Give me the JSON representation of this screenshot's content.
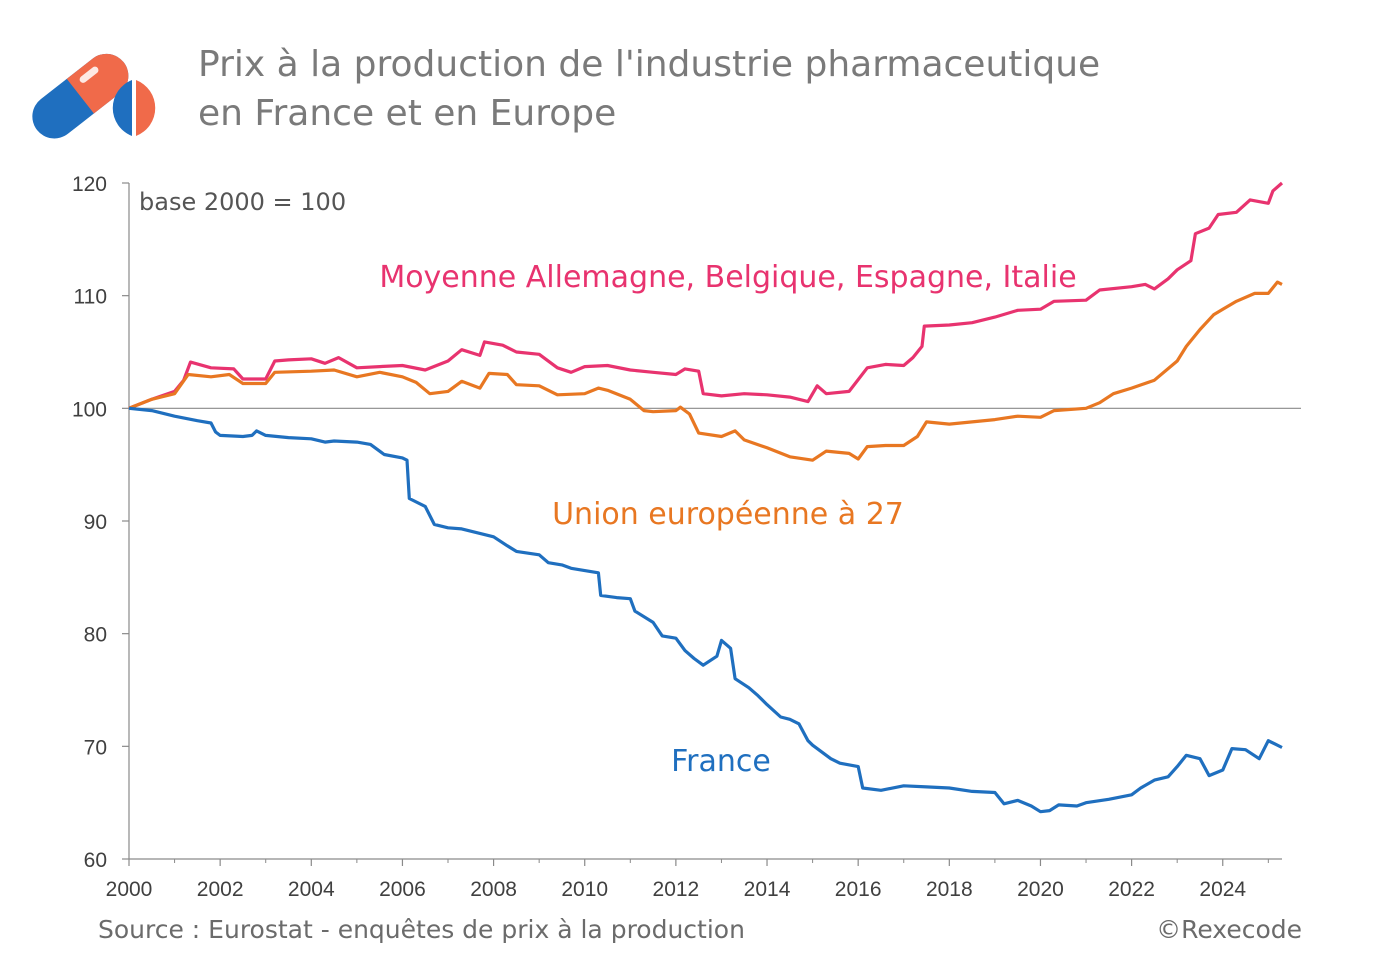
{
  "header": {
    "title_line1": "Prix à la production de l'industrie pharmaceutique",
    "title_line2": "en France et en Europe",
    "logo_icon": "pill-capsule-icon"
  },
  "footer": {
    "source": "Source : Eurostat - enquêtes de prix à la production",
    "copyright": "©Rexecode"
  },
  "chart_data": {
    "type": "line",
    "note": "base 2000 = 100",
    "xlim": [
      2000,
      2025.3
    ],
    "ylim": [
      60,
      120
    ],
    "xticks": [
      2000,
      2002,
      2004,
      2006,
      2008,
      2010,
      2012,
      2014,
      2016,
      2018,
      2020,
      2022,
      2024
    ],
    "yticks": [
      60,
      70,
      80,
      90,
      100,
      110,
      120
    ],
    "reference_line": 100,
    "grid": false,
    "series": [
      {
        "name": "Moyenne Allemagne, Belgique, Espagne, Italie",
        "color": "#e8336f",
        "points": [
          [
            2000,
            100
          ],
          [
            2000.5,
            100.8
          ],
          [
            2001,
            101.5
          ],
          [
            2001.2,
            102.5
          ],
          [
            2001.35,
            104.1
          ],
          [
            2001.8,
            103.6
          ],
          [
            2002.3,
            103.5
          ],
          [
            2002.5,
            102.6
          ],
          [
            2003,
            102.6
          ],
          [
            2003.2,
            104.2
          ],
          [
            2003.5,
            104.3
          ],
          [
            2004,
            104.4
          ],
          [
            2004.3,
            104.0
          ],
          [
            2004.6,
            104.5
          ],
          [
            2005,
            103.6
          ],
          [
            2005.5,
            103.7
          ],
          [
            2006,
            103.8
          ],
          [
            2006.5,
            103.4
          ],
          [
            2007,
            104.2
          ],
          [
            2007.3,
            105.2
          ],
          [
            2007.7,
            104.7
          ],
          [
            2007.8,
            105.9
          ],
          [
            2008.2,
            105.6
          ],
          [
            2008.5,
            105.0
          ],
          [
            2009,
            104.8
          ],
          [
            2009.4,
            103.6
          ],
          [
            2009.7,
            103.2
          ],
          [
            2010,
            103.7
          ],
          [
            2010.5,
            103.8
          ],
          [
            2011,
            103.4
          ],
          [
            2011.5,
            103.2
          ],
          [
            2012,
            103.0
          ],
          [
            2012.2,
            103.5
          ],
          [
            2012.5,
            103.3
          ],
          [
            2012.6,
            101.3
          ],
          [
            2013,
            101.1
          ],
          [
            2013.5,
            101.3
          ],
          [
            2014,
            101.2
          ],
          [
            2014.5,
            101.0
          ],
          [
            2014.9,
            100.6
          ],
          [
            2015.1,
            102.0
          ],
          [
            2015.3,
            101.3
          ],
          [
            2015.8,
            101.5
          ],
          [
            2016.2,
            103.6
          ],
          [
            2016.6,
            103.9
          ],
          [
            2017,
            103.8
          ],
          [
            2017.2,
            104.5
          ],
          [
            2017.4,
            105.5
          ],
          [
            2017.45,
            107.3
          ],
          [
            2018,
            107.4
          ],
          [
            2018.5,
            107.6
          ],
          [
            2019,
            108.1
          ],
          [
            2019.5,
            108.7
          ],
          [
            2020,
            108.8
          ],
          [
            2020.3,
            109.5
          ],
          [
            2021,
            109.6
          ],
          [
            2021.3,
            110.5
          ],
          [
            2022,
            110.8
          ],
          [
            2022.3,
            111.0
          ],
          [
            2022.5,
            110.6
          ],
          [
            2022.8,
            111.5
          ],
          [
            2023,
            112.3
          ],
          [
            2023.3,
            113.1
          ],
          [
            2023.4,
            115.5
          ],
          [
            2023.7,
            116.0
          ],
          [
            2023.9,
            117.2
          ],
          [
            2024.3,
            117.4
          ],
          [
            2024.6,
            118.5
          ],
          [
            2025,
            118.2
          ],
          [
            2025.1,
            119.3
          ],
          [
            2025.3,
            120.0
          ]
        ]
      },
      {
        "name": "Union européenne à 27",
        "color": "#e87722",
        "points": [
          [
            2000,
            100
          ],
          [
            2000.5,
            100.8
          ],
          [
            2001,
            101.3
          ],
          [
            2001.3,
            103.0
          ],
          [
            2001.8,
            102.8
          ],
          [
            2002.2,
            103.0
          ],
          [
            2002.5,
            102.2
          ],
          [
            2003,
            102.2
          ],
          [
            2003.2,
            103.2
          ],
          [
            2004,
            103.3
          ],
          [
            2004.5,
            103.4
          ],
          [
            2005,
            102.8
          ],
          [
            2005.5,
            103.2
          ],
          [
            2006,
            102.8
          ],
          [
            2006.3,
            102.3
          ],
          [
            2006.6,
            101.3
          ],
          [
            2007,
            101.5
          ],
          [
            2007.3,
            102.4
          ],
          [
            2007.7,
            101.8
          ],
          [
            2007.9,
            103.1
          ],
          [
            2008.3,
            103.0
          ],
          [
            2008.5,
            102.1
          ],
          [
            2009,
            102.0
          ],
          [
            2009.4,
            101.2
          ],
          [
            2010,
            101.3
          ],
          [
            2010.3,
            101.8
          ],
          [
            2010.5,
            101.6
          ],
          [
            2011,
            100.8
          ],
          [
            2011.3,
            99.8
          ],
          [
            2011.5,
            99.7
          ],
          [
            2012,
            99.8
          ],
          [
            2012.1,
            100.1
          ],
          [
            2012.3,
            99.5
          ],
          [
            2012.5,
            97.8
          ],
          [
            2013,
            97.5
          ],
          [
            2013.3,
            98.0
          ],
          [
            2013.5,
            97.2
          ],
          [
            2014,
            96.5
          ],
          [
            2014.5,
            95.7
          ],
          [
            2015,
            95.4
          ],
          [
            2015.3,
            96.2
          ],
          [
            2015.8,
            96.0
          ],
          [
            2016,
            95.5
          ],
          [
            2016.2,
            96.6
          ],
          [
            2016.6,
            96.7
          ],
          [
            2017,
            96.7
          ],
          [
            2017.3,
            97.5
          ],
          [
            2017.5,
            98.8
          ],
          [
            2018,
            98.6
          ],
          [
            2018.5,
            98.8
          ],
          [
            2019,
            99.0
          ],
          [
            2019.5,
            99.3
          ],
          [
            2020,
            99.2
          ],
          [
            2020.3,
            99.8
          ],
          [
            2021,
            100.0
          ],
          [
            2021.3,
            100.5
          ],
          [
            2021.6,
            101.3
          ],
          [
            2022,
            101.8
          ],
          [
            2022.5,
            102.5
          ],
          [
            2023,
            104.2
          ],
          [
            2023.2,
            105.5
          ],
          [
            2023.5,
            107.0
          ],
          [
            2023.8,
            108.3
          ],
          [
            2024,
            108.8
          ],
          [
            2024.3,
            109.5
          ],
          [
            2024.7,
            110.2
          ],
          [
            2025,
            110.2
          ],
          [
            2025.2,
            111.2
          ],
          [
            2025.3,
            111.0
          ]
        ]
      },
      {
        "name": "France",
        "color": "#1f6fbf",
        "points": [
          [
            2000,
            100
          ],
          [
            2000.5,
            99.8
          ],
          [
            2001,
            99.3
          ],
          [
            2001.5,
            98.9
          ],
          [
            2001.8,
            98.7
          ],
          [
            2001.9,
            97.9
          ],
          [
            2002,
            97.6
          ],
          [
            2002.5,
            97.5
          ],
          [
            2002.7,
            97.6
          ],
          [
            2002.8,
            98.0
          ],
          [
            2003,
            97.6
          ],
          [
            2003.5,
            97.4
          ],
          [
            2004,
            97.3
          ],
          [
            2004.3,
            97.0
          ],
          [
            2004.5,
            97.1
          ],
          [
            2005,
            97.0
          ],
          [
            2005.3,
            96.8
          ],
          [
            2005.6,
            95.9
          ],
          [
            2006,
            95.6
          ],
          [
            2006.1,
            95.4
          ],
          [
            2006.15,
            92.0
          ],
          [
            2006.5,
            91.3
          ],
          [
            2006.7,
            89.7
          ],
          [
            2007,
            89.4
          ],
          [
            2007.3,
            89.3
          ],
          [
            2007.6,
            89.0
          ],
          [
            2008,
            88.6
          ],
          [
            2008.3,
            87.8
          ],
          [
            2008.5,
            87.3
          ],
          [
            2009,
            87.0
          ],
          [
            2009.2,
            86.3
          ],
          [
            2009.5,
            86.1
          ],
          [
            2009.7,
            85.8
          ],
          [
            2010,
            85.6
          ],
          [
            2010.3,
            85.4
          ],
          [
            2010.35,
            83.4
          ],
          [
            2010.7,
            83.2
          ],
          [
            2011,
            83.1
          ],
          [
            2011.1,
            82.0
          ],
          [
            2011.5,
            81.0
          ],
          [
            2011.7,
            79.8
          ],
          [
            2012,
            79.6
          ],
          [
            2012.2,
            78.5
          ],
          [
            2012.4,
            77.8
          ],
          [
            2012.6,
            77.2
          ],
          [
            2012.9,
            78.0
          ],
          [
            2013,
            79.4
          ],
          [
            2013.2,
            78.7
          ],
          [
            2013.3,
            76.0
          ],
          [
            2013.6,
            75.2
          ],
          [
            2013.8,
            74.5
          ],
          [
            2014,
            73.7
          ],
          [
            2014.3,
            72.6
          ],
          [
            2014.5,
            72.4
          ],
          [
            2014.7,
            72.0
          ],
          [
            2014.9,
            70.5
          ],
          [
            2015,
            70.1
          ],
          [
            2015.4,
            68.9
          ],
          [
            2015.6,
            68.5
          ],
          [
            2016,
            68.2
          ],
          [
            2016.1,
            66.3
          ],
          [
            2016.5,
            66.1
          ],
          [
            2017,
            66.5
          ],
          [
            2017.5,
            66.4
          ],
          [
            2018,
            66.3
          ],
          [
            2018.5,
            66.0
          ],
          [
            2019,
            65.9
          ],
          [
            2019.2,
            64.9
          ],
          [
            2019.5,
            65.2
          ],
          [
            2019.8,
            64.7
          ],
          [
            2020,
            64.2
          ],
          [
            2020.2,
            64.3
          ],
          [
            2020.4,
            64.8
          ],
          [
            2020.8,
            64.7
          ],
          [
            2021,
            65.0
          ],
          [
            2021.5,
            65.3
          ],
          [
            2022,
            65.7
          ],
          [
            2022.2,
            66.3
          ],
          [
            2022.5,
            67.0
          ],
          [
            2022.8,
            67.3
          ],
          [
            2023,
            68.2
          ],
          [
            2023.2,
            69.2
          ],
          [
            2023.5,
            68.9
          ],
          [
            2023.7,
            67.4
          ],
          [
            2024,
            67.9
          ],
          [
            2024.2,
            69.8
          ],
          [
            2024.5,
            69.7
          ],
          [
            2024.8,
            68.9
          ],
          [
            2025,
            70.5
          ],
          [
            2025.15,
            70.2
          ],
          [
            2025.3,
            69.9
          ]
        ]
      }
    ],
    "annotations": [
      {
        "text": "Moyenne Allemagne, Belgique, Espagne, Italie",
        "color": "#e8336f"
      },
      {
        "text": "Union européenne à 27",
        "color": "#e87722"
      },
      {
        "text": "France",
        "color": "#1f6fbf"
      }
    ]
  }
}
